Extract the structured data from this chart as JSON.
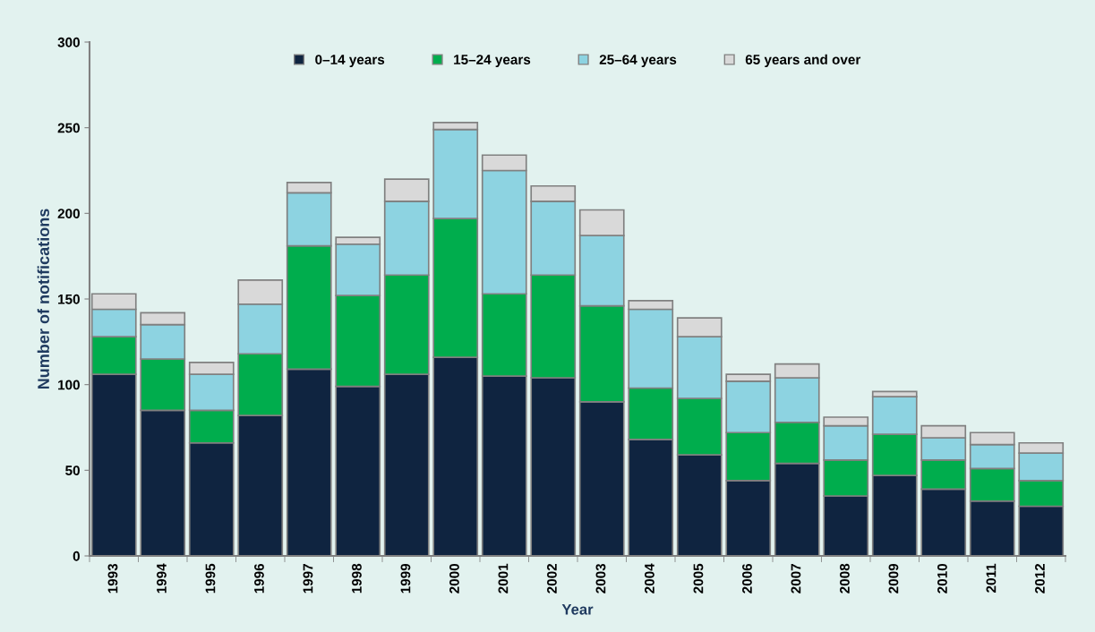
{
  "chart_data": {
    "type": "bar",
    "stacked": true,
    "xlabel": "Year",
    "ylabel": "Number of notifications",
    "categories": [
      "1993",
      "1994",
      "1995",
      "1996",
      "1997",
      "1998",
      "1999",
      "2000",
      "2001",
      "2002",
      "2003",
      "2004",
      "2005",
      "2006",
      "2007",
      "2008",
      "2009",
      "2010",
      "2011",
      "2012"
    ],
    "series": [
      {
        "name": "0–14 years",
        "color": "#0f2440",
        "values": [
          106,
          85,
          66,
          82,
          109,
          99,
          106,
          116,
          105,
          104,
          90,
          68,
          59,
          44,
          54,
          35,
          47,
          39,
          32,
          29
        ]
      },
      {
        "name": "15–24 years",
        "color": "#00ad4d",
        "values": [
          22,
          30,
          19,
          36,
          72,
          53,
          58,
          81,
          48,
          60,
          56,
          30,
          33,
          28,
          24,
          21,
          24,
          17,
          19,
          15
        ]
      },
      {
        "name": "25–64 years",
        "color": "#8dd3e1",
        "values": [
          16,
          20,
          21,
          29,
          31,
          30,
          43,
          52,
          72,
          43,
          41,
          46,
          36,
          30,
          26,
          20,
          22,
          13,
          14,
          16
        ]
      },
      {
        "name": "65 years and over",
        "color": "#d9d9d9",
        "values": [
          9,
          7,
          7,
          14,
          6,
          4,
          13,
          4,
          9,
          9,
          15,
          5,
          11,
          4,
          8,
          5,
          3,
          7,
          7,
          6
        ]
      }
    ],
    "ylim": [
      0,
      300
    ],
    "yticks": [
      0,
      50,
      100,
      150,
      200,
      250,
      300
    ],
    "grid": false,
    "legend": "top"
  }
}
